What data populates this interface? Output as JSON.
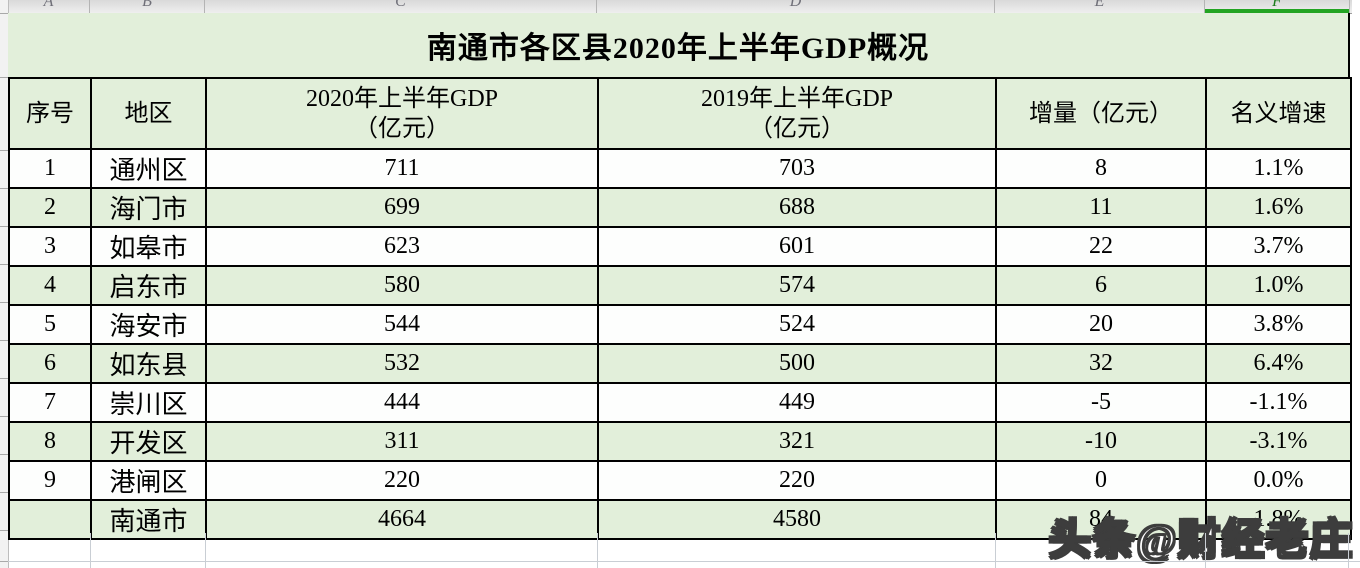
{
  "sheet": {
    "column_letters": [
      "A",
      "B",
      "C",
      "D",
      "E",
      "F"
    ],
    "selected_column_letter": "F"
  },
  "title": "南通市各区县2020年上半年GDP概况",
  "table": {
    "headers": [
      "序号",
      "地区",
      "2020年上半年GDP\n（亿元）",
      "2019年上半年GDP\n（亿元）",
      "增量（亿元）",
      "名义增速"
    ],
    "rows": [
      [
        "1",
        "通州区",
        "711",
        "703",
        "8",
        "1.1%"
      ],
      [
        "2",
        "海门市",
        "699",
        "688",
        "11",
        "1.6%"
      ],
      [
        "3",
        "如皋市",
        "623",
        "601",
        "22",
        "3.7%"
      ],
      [
        "4",
        "启东市",
        "580",
        "574",
        "6",
        "1.0%"
      ],
      [
        "5",
        "海安市",
        "544",
        "524",
        "20",
        "3.8%"
      ],
      [
        "6",
        "如东县",
        "532",
        "500",
        "32",
        "6.4%"
      ],
      [
        "7",
        "崇川区",
        "444",
        "449",
        "-5",
        "-1.1%"
      ],
      [
        "8",
        "开发区",
        "311",
        "321",
        "-10",
        "-3.1%"
      ],
      [
        "9",
        "港闸区",
        "220",
        "220",
        "0",
        "0.0%"
      ],
      [
        "",
        "南通市",
        "4664",
        "4580",
        "84",
        "1.8%"
      ]
    ]
  },
  "colors": {
    "row_green": "#e2efda",
    "row_white": "#fdfefd",
    "selection_green": "#23a423",
    "table_border": "#000000"
  },
  "watermark": "头条@财经老庄"
}
